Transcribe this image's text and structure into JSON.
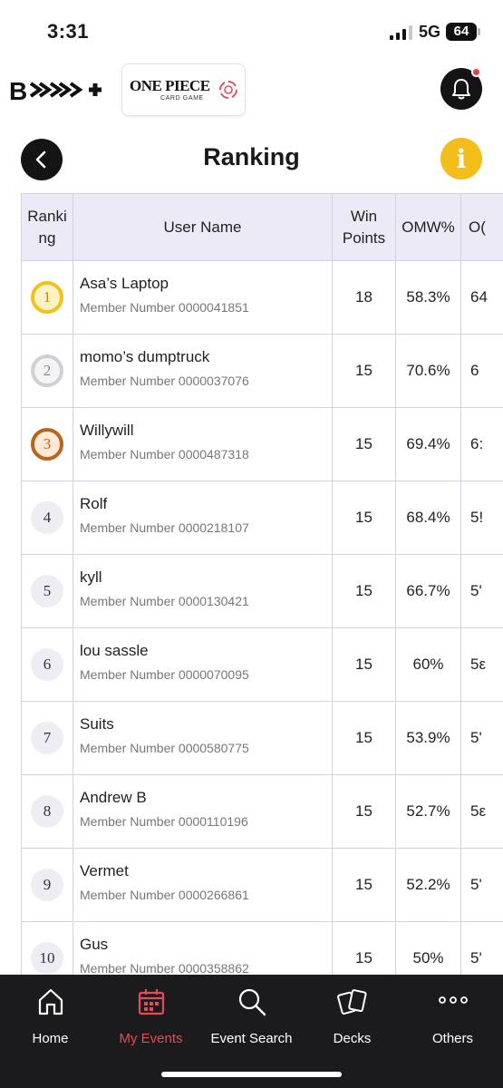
{
  "status_bar": {
    "time": "3:31",
    "network": "5G",
    "battery": "64"
  },
  "header": {
    "logo_bandai": "B",
    "card_game_title": "ONE PIECE",
    "card_game_subtitle": "CARD GAME"
  },
  "page": {
    "title": "Ranking",
    "info_label": "i"
  },
  "table": {
    "columns": [
      {
        "line1": "Ranki",
        "line2": "ng"
      },
      {
        "line1": "User Name",
        "line2": ""
      },
      {
        "line1": "Win",
        "line2": "Points"
      },
      {
        "line1": "OMW%",
        "line2": ""
      },
      {
        "line1": "O(",
        "line2": ""
      }
    ],
    "rows": [
      {
        "rank": "1",
        "name": "Asa’s Laptop",
        "member": "Member Number 0000041851",
        "win_points": "18",
        "omw": "58.3%",
        "cut": "64"
      },
      {
        "rank": "2",
        "name": "momo’s dumptruck",
        "member": "Member Number 0000037076",
        "win_points": "15",
        "omw": "70.6%",
        "cut": "6"
      },
      {
        "rank": "3",
        "name": "Willywill",
        "member": "Member Number 0000487318",
        "win_points": "15",
        "omw": "69.4%",
        "cut": "6:"
      },
      {
        "rank": "4",
        "name": "Rolf",
        "member": "Member Number 0000218107",
        "win_points": "15",
        "omw": "68.4%",
        "cut": "5!"
      },
      {
        "rank": "5",
        "name": "kyll",
        "member": "Member Number 0000130421",
        "win_points": "15",
        "omw": "66.7%",
        "cut": "5'"
      },
      {
        "rank": "6",
        "name": "lou sassle",
        "member": "Member Number 0000070095",
        "win_points": "15",
        "omw": "60%",
        "cut": "5ε"
      },
      {
        "rank": "7",
        "name": "Suits",
        "member": "Member Number 0000580775",
        "win_points": "15",
        "omw": "53.9%",
        "cut": "5'"
      },
      {
        "rank": "8",
        "name": "Andrew B",
        "member": "Member Number 0000110196",
        "win_points": "15",
        "omw": "52.7%",
        "cut": "5ε"
      },
      {
        "rank": "9",
        "name": "Vermet",
        "member": "Member Number 0000266861",
        "win_points": "15",
        "omw": "52.2%",
        "cut": "5'"
      },
      {
        "rank": "10",
        "name": "Gus",
        "member": "Member Number 0000358862",
        "win_points": "15",
        "omw": "50%",
        "cut": "5'"
      }
    ]
  },
  "bottom_nav": {
    "items": [
      {
        "label": "Home",
        "icon": "home-icon",
        "active": false
      },
      {
        "label": "My Events",
        "icon": "calendar-icon",
        "active": true
      },
      {
        "label": "Event Search",
        "icon": "search-icon",
        "active": false
      },
      {
        "label": "Decks",
        "icon": "cards-icon",
        "active": false
      },
      {
        "label": "Others",
        "icon": "more-icon",
        "active": false
      }
    ]
  },
  "colors": {
    "accent_active": "#e24d57",
    "info_button": "#f3be19",
    "header_row": "#eceaf7",
    "gold": "#f4c11c",
    "silver": "#cfcfd4",
    "bronze": "#b8641c",
    "nav_background": "#1b1b1d"
  }
}
